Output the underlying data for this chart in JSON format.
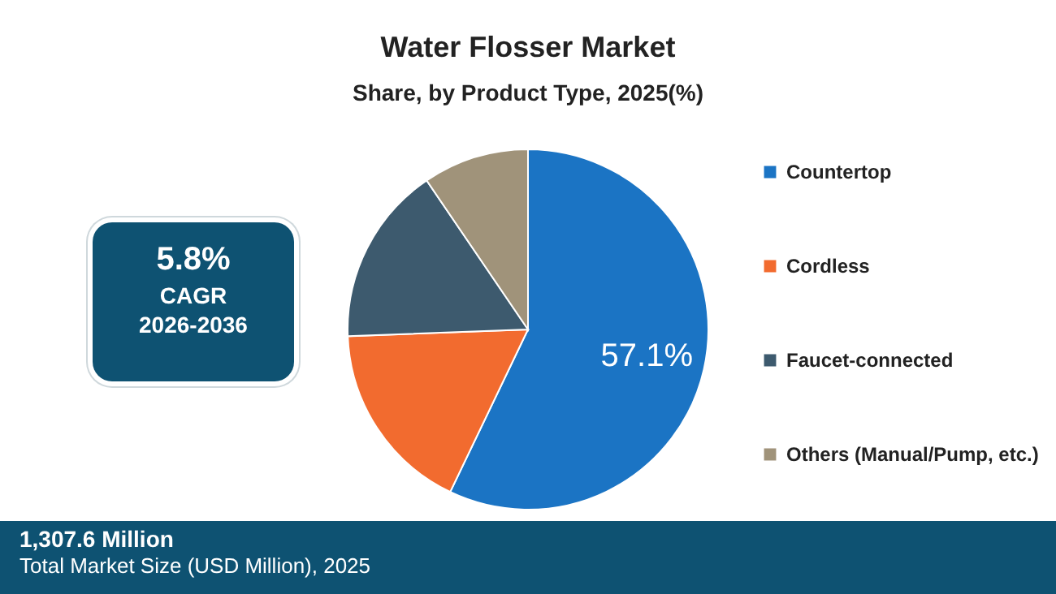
{
  "chart_data": {
    "type": "pie",
    "title": "Water Flosser Market",
    "subtitle": "Share, by Product Type, 2025(%)",
    "categories": [
      "Countertop",
      "Cordless",
      "Faucet-connected",
      "Others (Manual/Pump, etc.)"
    ],
    "values": [
      57.1,
      17.3,
      16.1,
      9.5
    ],
    "colors": [
      "#1b74c4",
      "#f26b2f",
      "#3d5a6e",
      "#a0937a"
    ],
    "value_labels": [
      "57.1%",
      null,
      null,
      null
    ],
    "legend": "right",
    "annotations": [
      "5.8%",
      "CAGR",
      "2026-2036",
      "1,307.6 Million",
      "Total Market Size (USD Million), 2025"
    ]
  }
}
